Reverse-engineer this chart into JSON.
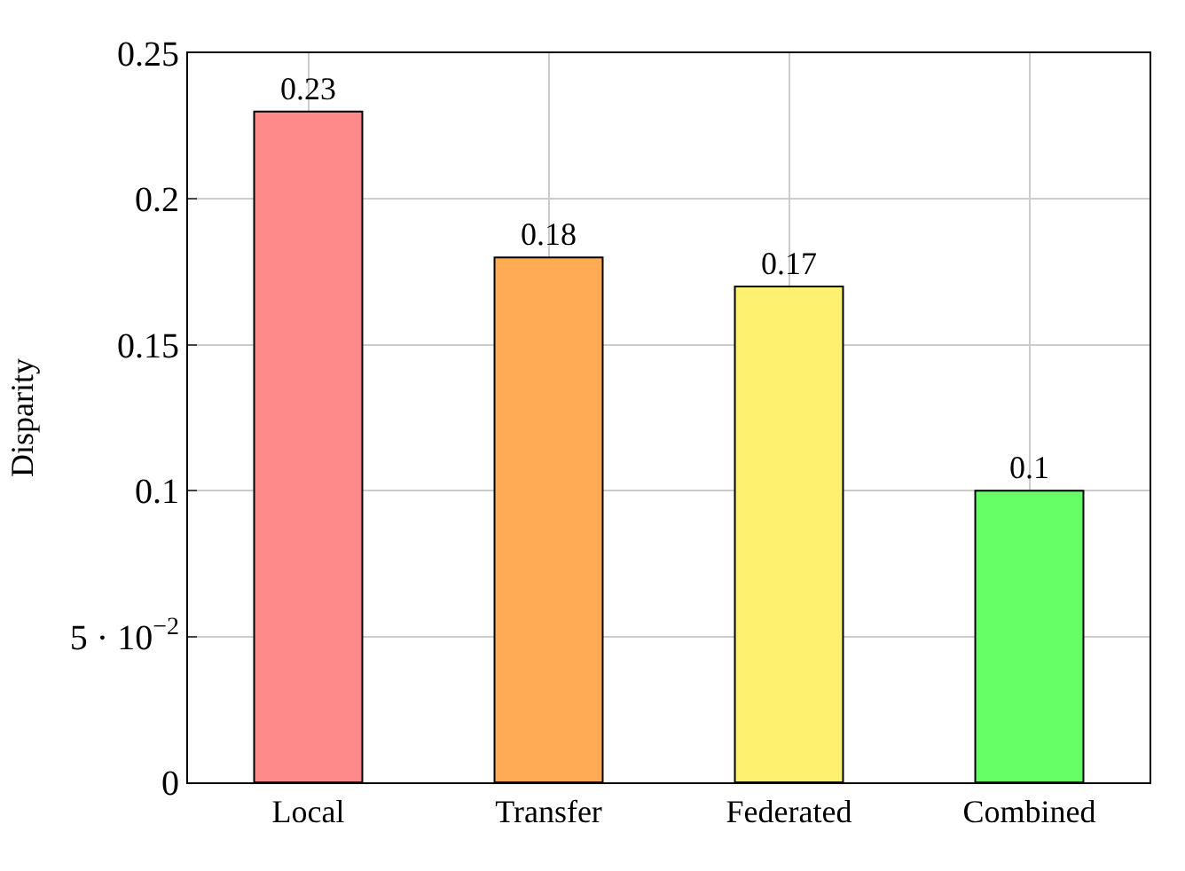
{
  "chart_data": {
    "type": "bar",
    "ylabel": "Disparity",
    "categories": [
      "Local",
      "Transfer",
      "Federated",
      "Combined"
    ],
    "values": [
      0.23,
      0.18,
      0.17,
      0.1
    ],
    "colors": [
      "#ff8a8a",
      "#ffab55",
      "#fff170",
      "#66ff66"
    ],
    "ylim": [
      0,
      0.25
    ],
    "yticks": [
      0,
      {
        "value": 0.05,
        "label": "5 · 10$^{−2}$"
      },
      0.1,
      0.15,
      0.2,
      0.25
    ],
    "data_labels": true,
    "grid": true
  }
}
